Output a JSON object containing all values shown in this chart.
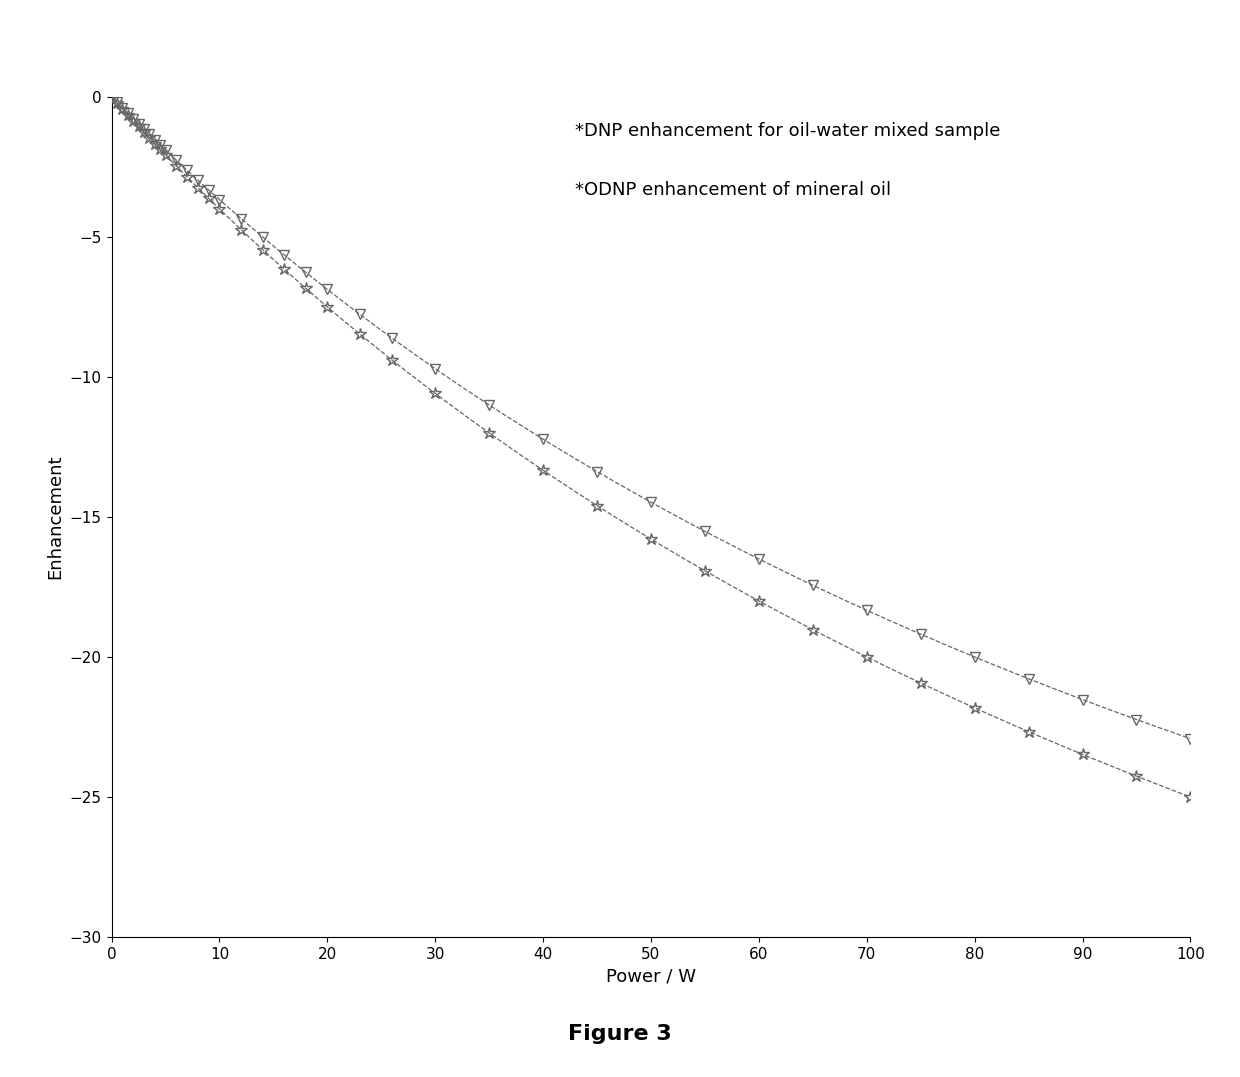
{
  "xlabel": "Power / W",
  "ylabel": "Enhancement",
  "xlim": [
    0,
    100
  ],
  "ylim": [
    -30,
    0
  ],
  "yticks": [
    0,
    -5,
    -10,
    -15,
    -20,
    -25,
    -30
  ],
  "xticks": [
    0,
    10,
    20,
    30,
    40,
    50,
    60,
    70,
    80,
    90,
    100
  ],
  "legend_lines": [
    "*DNP enhancement for oil-water mixed sample",
    "*ODNP enhancement of mineral oil"
  ],
  "series": [
    {
      "label": "*DNP enhancement for oil-water mixed sample",
      "E_max": -60.0,
      "P_half": 140.0,
      "marker": "*",
      "linestyle": "--",
      "color": "#666666",
      "markersize": 9,
      "markeredgewidth": 1.0
    },
    {
      "label": "*ODNP enhancement of mineral oil",
      "E_max": -55.0,
      "P_half": 140.0,
      "marker": "v",
      "linestyle": "--",
      "color": "#666666",
      "markersize": 7,
      "markeredgewidth": 1.0
    }
  ],
  "data_points_x": [
    0,
    0.5,
    1,
    1.5,
    2,
    2.5,
    3,
    3.5,
    4,
    4.5,
    5,
    6,
    7,
    8,
    9,
    10,
    12,
    14,
    16,
    18,
    20,
    23,
    26,
    30,
    35,
    40,
    45,
    50,
    55,
    60,
    65,
    70,
    75,
    80,
    85,
    90,
    95,
    100
  ],
  "background_color": "#ffffff",
  "figure_label": "Figure 3",
  "figure_label_fontsize": 16,
  "axis_fontsize": 13,
  "tick_fontsize": 11,
  "legend_fontsize": 13
}
